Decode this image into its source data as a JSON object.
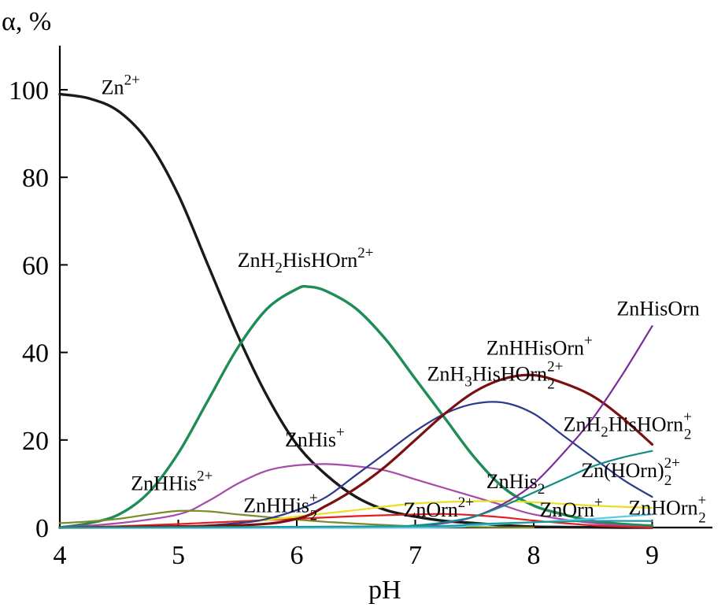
{
  "chart_data": {
    "type": "line",
    "xlabel": "pH",
    "ylabel": "α, %",
    "xlim": [
      4,
      9.5
    ],
    "ylim": [
      0,
      110
    ],
    "xticks": [
      "4",
      "5",
      "6",
      "7",
      "8",
      "9"
    ],
    "xtick_values": [
      4,
      5,
      6,
      7,
      8,
      9
    ],
    "yticks": [
      "0",
      "20",
      "40",
      "60",
      "80",
      "100"
    ],
    "ytick_values": [
      0,
      20,
      40,
      60,
      80,
      100
    ],
    "grid": false,
    "series": [
      {
        "name": "Zn2+",
        "color": "#1a1a1a",
        "x": [
          4.0,
          4.25,
          4.5,
          4.75,
          5.0,
          5.25,
          5.5,
          5.75,
          6.0,
          6.25,
          6.5,
          6.75,
          7.0,
          7.25,
          7.5,
          7.75,
          8.0,
          8.25,
          8.5,
          8.75,
          9.0
        ],
        "y": [
          99,
          98,
          95,
          88,
          76,
          60,
          44,
          30,
          19,
          12,
          7,
          4,
          2.5,
          1.5,
          1,
          0.5,
          0.2,
          0.1,
          0.05,
          0,
          0
        ]
      },
      {
        "name": "ZnH2HisHOrn2+",
        "color": "#1e8c55",
        "x": [
          4.0,
          4.25,
          4.5,
          4.75,
          5.0,
          5.25,
          5.5,
          5.75,
          6.0,
          6.1,
          6.25,
          6.5,
          6.75,
          7.0,
          7.25,
          7.5,
          7.75,
          8.0,
          8.25,
          8.5,
          8.75,
          9.0
        ],
        "y": [
          0,
          1,
          3,
          8,
          17,
          29,
          41,
          50,
          54.5,
          55,
          54,
          50,
          43,
          34,
          25,
          16,
          9,
          5,
          3,
          1.5,
          0.8,
          0.4
        ]
      },
      {
        "name": "ZnHis+",
        "color": "#a64ba8",
        "x": [
          4.0,
          4.5,
          5.0,
          5.25,
          5.5,
          5.75,
          6.0,
          6.25,
          6.5,
          6.75,
          7.0,
          7.25,
          7.5,
          7.75,
          8.0,
          8.5,
          9.0
        ],
        "y": [
          0,
          1,
          3,
          6,
          10,
          13,
          14.2,
          14.5,
          14,
          13,
          11,
          9,
          7,
          5,
          3,
          1,
          0
        ]
      },
      {
        "name": "ZnHHis2+",
        "color": "#7d8a2a",
        "x": [
          4.0,
          4.25,
          4.5,
          4.75,
          5.0,
          5.25,
          5.5,
          5.75,
          6.0,
          6.25,
          6.5,
          7.0,
          7.5,
          8.0
        ],
        "y": [
          1,
          1.4,
          2,
          3,
          3.8,
          3.7,
          3,
          2.4,
          1.8,
          1.3,
          0.9,
          0.3,
          0.1,
          0
        ]
      },
      {
        "name": "ZnHHis2+",
        "color": "#e02020",
        "x": [
          4.0,
          4.5,
          5.0,
          5.5,
          6.0,
          6.5,
          7.0,
          7.25,
          7.5,
          7.75,
          8.0,
          8.5,
          9.0
        ],
        "y": [
          0,
          0.3,
          0.8,
          1.4,
          2,
          2.6,
          3,
          3.1,
          2.8,
          2.3,
          1.6,
          0.5,
          0
        ]
      },
      {
        "name": "ZnOrn2+",
        "color": "#e8e020",
        "x": [
          4.0,
          5.0,
          5.5,
          6.0,
          6.5,
          7.0,
          7.5,
          7.75,
          8.0,
          8.5,
          9.0
        ],
        "y": [
          0,
          0.2,
          1,
          2.5,
          4,
          5.5,
          6,
          6,
          5.8,
          5,
          4.5
        ]
      },
      {
        "name": "ZnHis2",
        "color": "#2d3a8c",
        "x": [
          4.0,
          5.0,
          5.5,
          5.75,
          6.0,
          6.25,
          6.5,
          6.75,
          7.0,
          7.25,
          7.5,
          7.75,
          8.0,
          8.25,
          8.5,
          8.75,
          9.0
        ],
        "y": [
          0,
          0.2,
          1,
          2,
          4,
          7,
          12,
          17,
          22,
          26,
          28.3,
          28.5,
          26,
          21,
          16,
          11,
          7
        ]
      },
      {
        "name": "ZnH3HisHOrn2 2+",
        "color": "#7a1010",
        "x": [
          4.0,
          5.5,
          6.0,
          6.25,
          6.5,
          6.75,
          7.0,
          7.25,
          7.5,
          7.75,
          8.0,
          8.25,
          8.5,
          8.75,
          9.0
        ],
        "y": [
          0,
          0.5,
          2,
          5,
          9,
          14,
          20,
          26,
          31,
          34,
          34.8,
          33,
          30,
          25,
          19
        ]
      },
      {
        "name": "ZnHisOrn",
        "color": "#7a2a9a",
        "x": [
          4.0,
          6.5,
          7.0,
          7.25,
          7.5,
          7.75,
          8.0,
          8.25,
          8.5,
          8.75,
          9.0
        ],
        "y": [
          0,
          0,
          0.4,
          1,
          2.5,
          5.5,
          10,
          17,
          25,
          35,
          46
        ]
      },
      {
        "name": "ZnH2HisHOrn2 +",
        "color": "#148a8a",
        "x": [
          4.0,
          6.5,
          7.0,
          7.25,
          7.5,
          7.75,
          8.0,
          8.25,
          8.5,
          8.75,
          9.0
        ],
        "y": [
          0,
          0,
          0.5,
          1.2,
          2.5,
          5,
          8,
          11,
          14,
          16,
          17.5
        ]
      },
      {
        "name": "ZnOrn+",
        "color": "#60c8e8",
        "x": [
          4.0,
          7.0,
          7.5,
          8.0,
          8.5,
          9.0
        ],
        "y": [
          0,
          0,
          0.5,
          1.2,
          2,
          3
        ]
      },
      {
        "name": "ZnHOrn2+",
        "color": "#1a9a9a",
        "x": [
          4.0,
          7.0,
          7.5,
          8.0,
          8.5,
          9.0
        ],
        "y": [
          0,
          0.3,
          0.8,
          1.2,
          1.5,
          1.5
        ]
      }
    ],
    "annotations": [
      {
        "base": "Zn",
        "sup": "2+",
        "sub": "",
        "x": 4.35,
        "y": 99
      },
      {
        "base": "ZnH",
        "sub1": "2",
        "rest": "HisHOrn",
        "sup": "2+",
        "x": 5.5,
        "y": 59.5
      },
      {
        "base": "ZnHHisOrn",
        "sup": "+",
        "sub": "",
        "x": 7.6,
        "y": 39.5
      },
      {
        "base": "ZnHisOrn",
        "sup": "",
        "sub": "",
        "x": 8.7,
        "y": 48.5
      },
      {
        "base": "ZnH",
        "sub1": "3",
        "rest": "HisHOrn",
        "sup": "2+",
        "sub": "2",
        "x": 7.1,
        "y": 33.5
      },
      {
        "base": "ZnH",
        "sub1": "2",
        "rest": "HisHOrn",
        "sup": "+",
        "sub": "2",
        "x": 8.25,
        "y": 22
      },
      {
        "base": "ZnHis",
        "sup": "+",
        "sub": "",
        "x": 5.9,
        "y": 18.5
      },
      {
        "base": "ZnHHis",
        "sup": "2+",
        "sub": "",
        "x": 4.6,
        "y": 8.5
      },
      {
        "base": "ZnHHis",
        "sup": "+",
        "sub": "2",
        "x": 5.55,
        "y": 3.5
      },
      {
        "base": "ZnOrn",
        "sup": "2+",
        "sub": "",
        "x": 6.9,
        "y": 2.5
      },
      {
        "base": "ZnHis",
        "sup": "",
        "sub": "2",
        "x": 7.6,
        "y": 9
      },
      {
        "base": "Zn(HOrn)",
        "sup": "2+",
        "sub": "2",
        "x": 8.4,
        "y": 11.5
      },
      {
        "base": "ZnOrn",
        "sup": "+",
        "sub": "",
        "x": 8.05,
        "y": 2.5
      },
      {
        "base": "ZnHOrn",
        "sup": "+",
        "sub": "2",
        "x": 8.8,
        "y": 3
      }
    ]
  }
}
